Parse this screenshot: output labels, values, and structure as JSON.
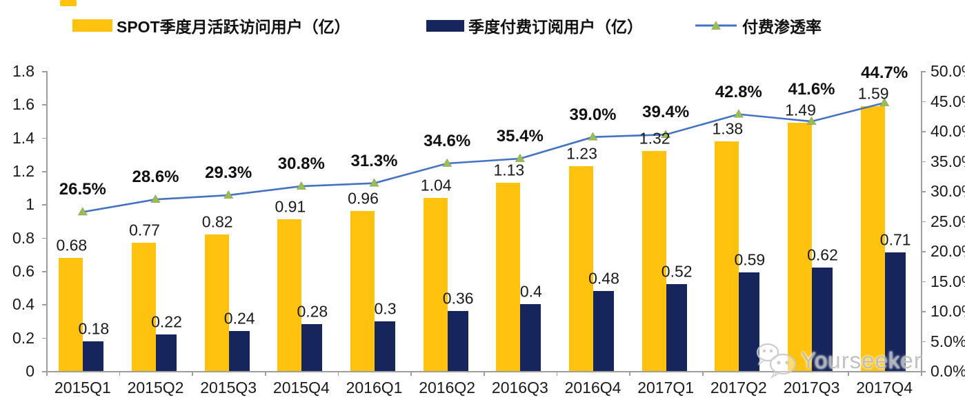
{
  "legend": [
    {
      "label": "SPOT季度月活跃访问用户（亿）",
      "swatch": "bar",
      "color": "#FFC20E"
    },
    {
      "label": "季度付费订阅用户（亿）",
      "swatch": "bar",
      "color": "#16265C"
    },
    {
      "label": "付费渗透率",
      "swatch": "line-triangle-marker",
      "line_color": "#4472C4",
      "marker_color": "#9BBB59"
    }
  ],
  "watermark": {
    "text": "Yourseeker",
    "icon": "wechat-icon",
    "color": "#bdbdbd"
  },
  "colors": {
    "mau_bar": "#FFC20E",
    "subs_bar": "#16265C",
    "line": "#4472C4",
    "marker": "#9BBB59",
    "axis": "#9e9e9e",
    "text": "#1a1a1a"
  },
  "chart_data": {
    "type": "combo-bar-line",
    "title": "",
    "categories": [
      "2015Q1",
      "2015Q2",
      "2015Q3",
      "2015Q4",
      "2016Q1",
      "2016Q2",
      "2016Q3",
      "2016Q4",
      "2017Q1",
      "2017Q2",
      "2017Q3",
      "2017Q4"
    ],
    "series": [
      {
        "name": "SPOT季度月活跃访问用户（亿）",
        "type": "bar",
        "axis": "left",
        "color": "#FFC20E",
        "values": [
          0.68,
          0.77,
          0.82,
          0.91,
          0.96,
          1.04,
          1.13,
          1.23,
          1.32,
          1.38,
          1.49,
          1.59
        ],
        "labels": [
          "0.68",
          "0.77",
          "0.82",
          "0.91",
          "0.96",
          "1.04",
          "1.13",
          "1.23",
          "1.32",
          "1.38",
          "1.49",
          "1.59"
        ]
      },
      {
        "name": "季度付费订阅用户（亿）",
        "type": "bar",
        "axis": "left",
        "color": "#16265C",
        "values": [
          0.18,
          0.22,
          0.24,
          0.28,
          0.3,
          0.36,
          0.4,
          0.48,
          0.52,
          0.59,
          0.62,
          0.71
        ],
        "labels": [
          "0.18",
          "0.22",
          "0.24",
          "0.28",
          "0.3",
          "0.36",
          "0.4",
          "0.48",
          "0.52",
          "0.59",
          "0.62",
          "0.71"
        ]
      },
      {
        "name": "付费渗透率",
        "type": "line",
        "axis": "right",
        "color": "#4472C4",
        "marker": "triangle",
        "marker_color": "#9BBB59",
        "values": [
          26.5,
          28.6,
          29.3,
          30.8,
          31.3,
          34.6,
          35.4,
          39.0,
          39.4,
          42.8,
          41.6,
          44.7
        ],
        "labels": [
          "26.5%",
          "28.6%",
          "29.3%",
          "30.8%",
          "31.3%",
          "34.6%",
          "35.4%",
          "39.0%",
          "39.4%",
          "42.8%",
          "41.6%",
          "44.7%"
        ]
      }
    ],
    "left_axis": {
      "min": 0,
      "max": 1.8,
      "step": 0.2,
      "tick_labels": [
        "0",
        "0.2",
        "0.4",
        "0.6",
        "0.8",
        "1",
        "1.2",
        "1.4",
        "1.6",
        "1.8"
      ]
    },
    "right_axis": {
      "min": 0,
      "max": 50,
      "step": 5,
      "tick_labels": [
        "0.0%",
        "5.0%",
        "10.0%",
        "15.0%",
        "20.0%",
        "25.0%",
        "30.0%",
        "35.0%",
        "40.0%",
        "45.0%",
        "50.0%"
      ]
    },
    "grid": false,
    "legend_position": "top"
  }
}
